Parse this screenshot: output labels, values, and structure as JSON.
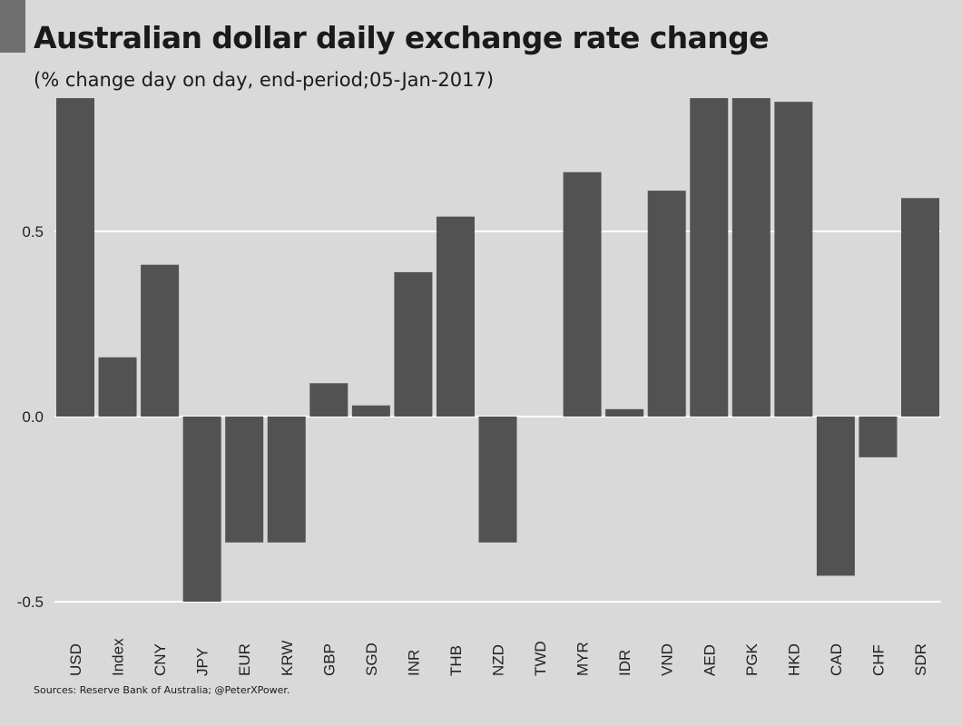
{
  "header": {
    "title": "Australian dollar daily exchange rate change",
    "subtitle": "(% change day on day, end-period;05-Jan-2017)"
  },
  "footer": {
    "source": "Sources: Reserve Bank of Australia;  @PeterXPower."
  },
  "colors": {
    "background": "#d9d9d9",
    "bar": "#525252",
    "grid": "#ffffff",
    "text": "#1a1a1a"
  },
  "chart_data": {
    "type": "bar",
    "title": "Australian dollar daily exchange rate change",
    "subtitle": "(% change day on day, end-period;05-Jan-2017)",
    "xlabel": "",
    "ylabel": "",
    "ylim": [
      -0.5,
      0.86
    ],
    "yticks": [
      -0.5,
      0.0,
      0.5
    ],
    "ytick_labels": [
      "-0.5",
      "0.0",
      "0.5"
    ],
    "grid": true,
    "legend": "none",
    "categories": [
      "USD",
      "Index",
      "CNY",
      "JPY",
      "EUR",
      "KRW",
      "GBP",
      "SGD",
      "INR",
      "THB",
      "NZD",
      "TWD",
      "MYR",
      "IDR",
      "VND",
      "AED",
      "PGK",
      "HKD",
      "CAD",
      "CHF",
      "SDR"
    ],
    "values": [
      0.86,
      0.16,
      0.41,
      -0.5,
      -0.34,
      -0.34,
      0.09,
      0.03,
      0.39,
      0.54,
      -0.34,
      0.0,
      0.66,
      0.02,
      0.61,
      0.86,
      0.86,
      0.85,
      -0.43,
      -0.11,
      0.59
    ]
  }
}
